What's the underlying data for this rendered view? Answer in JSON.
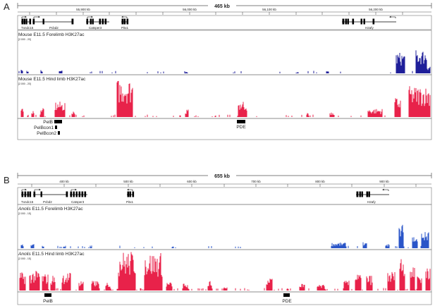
{
  "panels": [
    {
      "letter": "A",
      "ruler_span": "465 kb",
      "ticks": [
        "55,900 kb",
        "56,000 kb",
        "56,100 kb",
        "56,200 kb"
      ],
      "genes": [
        "Txndc15",
        "Pcbd2",
        "Catsper3",
        "Pitx1",
        "H2afy"
      ],
      "track1": {
        "title": "Mouse E11.5 Forelimb H3K27ac",
        "range": "[2.000 - 20]",
        "color": "#1f1f9a"
      },
      "track2": {
        "title": "Mouse E11.5 Hind limb H3K27ac",
        "range": "[2.000 - 20]",
        "color": "#e8224a"
      },
      "regions": [
        "PelB",
        "PelBcon1",
        "PelBcon2",
        "PDE"
      ]
    },
    {
      "letter": "B",
      "ruler_span": "655 kb",
      "ticks": [
        "400 kb",
        "500 kb",
        "600 kb",
        "700 kb",
        "800 kb",
        "900 kb"
      ],
      "genes": [
        "Txndc15",
        "Pcbd2",
        "Catsper3",
        "Pitx1",
        "H2afy"
      ],
      "track1": {
        "title_italic": "Anolis",
        "title": " E11.5 Forelimb H3K27ac",
        "range": "[2.000 - 15]",
        "color": "#2a55c8"
      },
      "track2": {
        "title_italic": "Anolis",
        "title": " E11.5 Hind limb H3K27ac",
        "range": "[2.000 - 15]",
        "color": "#e8224a"
      },
      "regions": [
        "PelB",
        "PDE"
      ]
    }
  ]
}
